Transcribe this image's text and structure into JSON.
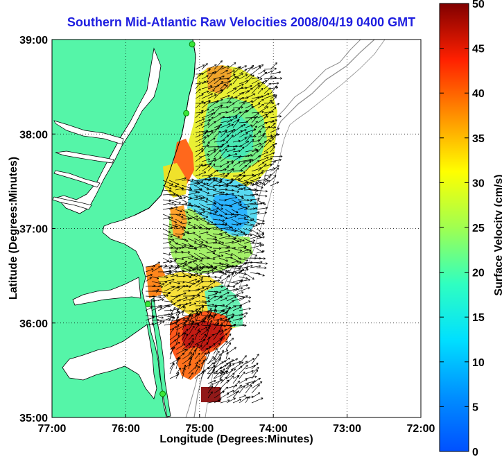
{
  "title": "Southern Mid-Atlantic Raw Velocities 2008/04/19 0400 GMT",
  "xlabel": "Longitude (Degrees:Minutes)",
  "ylabel": "Latitude (Degrees:Minutes)",
  "colorbar": {
    "label": "Surface Velocity (cm/s)",
    "ticks": [
      "0",
      "5",
      "10",
      "15",
      "20",
      "25",
      "30",
      "35",
      "40",
      "45",
      "50"
    ],
    "range": [
      0,
      50
    ]
  },
  "map": {
    "lon_range": [
      -77,
      -72
    ],
    "lat_range": [
      35,
      39
    ],
    "lon_ticks": [
      "77:00",
      "76:00",
      "75:00",
      "74:00",
      "73:00",
      "72:00"
    ],
    "lat_ticks": [
      "35:00",
      "36:00",
      "37:00",
      "38:00",
      "39:00"
    ],
    "land_color": "#55f5a8",
    "coast_color": "#000000",
    "bathymetry_color": "#8c8c8c",
    "site_color": "#39e639",
    "grid": "dotted",
    "stations": [
      {
        "lon": -75.1,
        "lat": 38.95
      },
      {
        "lon": -75.18,
        "lat": 38.22
      },
      {
        "lon": -75.7,
        "lat": 36.2
      },
      {
        "lon": -75.5,
        "lat": 35.25
      }
    ]
  },
  "colors": {
    "title": "#1e1ee0",
    "background": "#ffffff"
  }
}
